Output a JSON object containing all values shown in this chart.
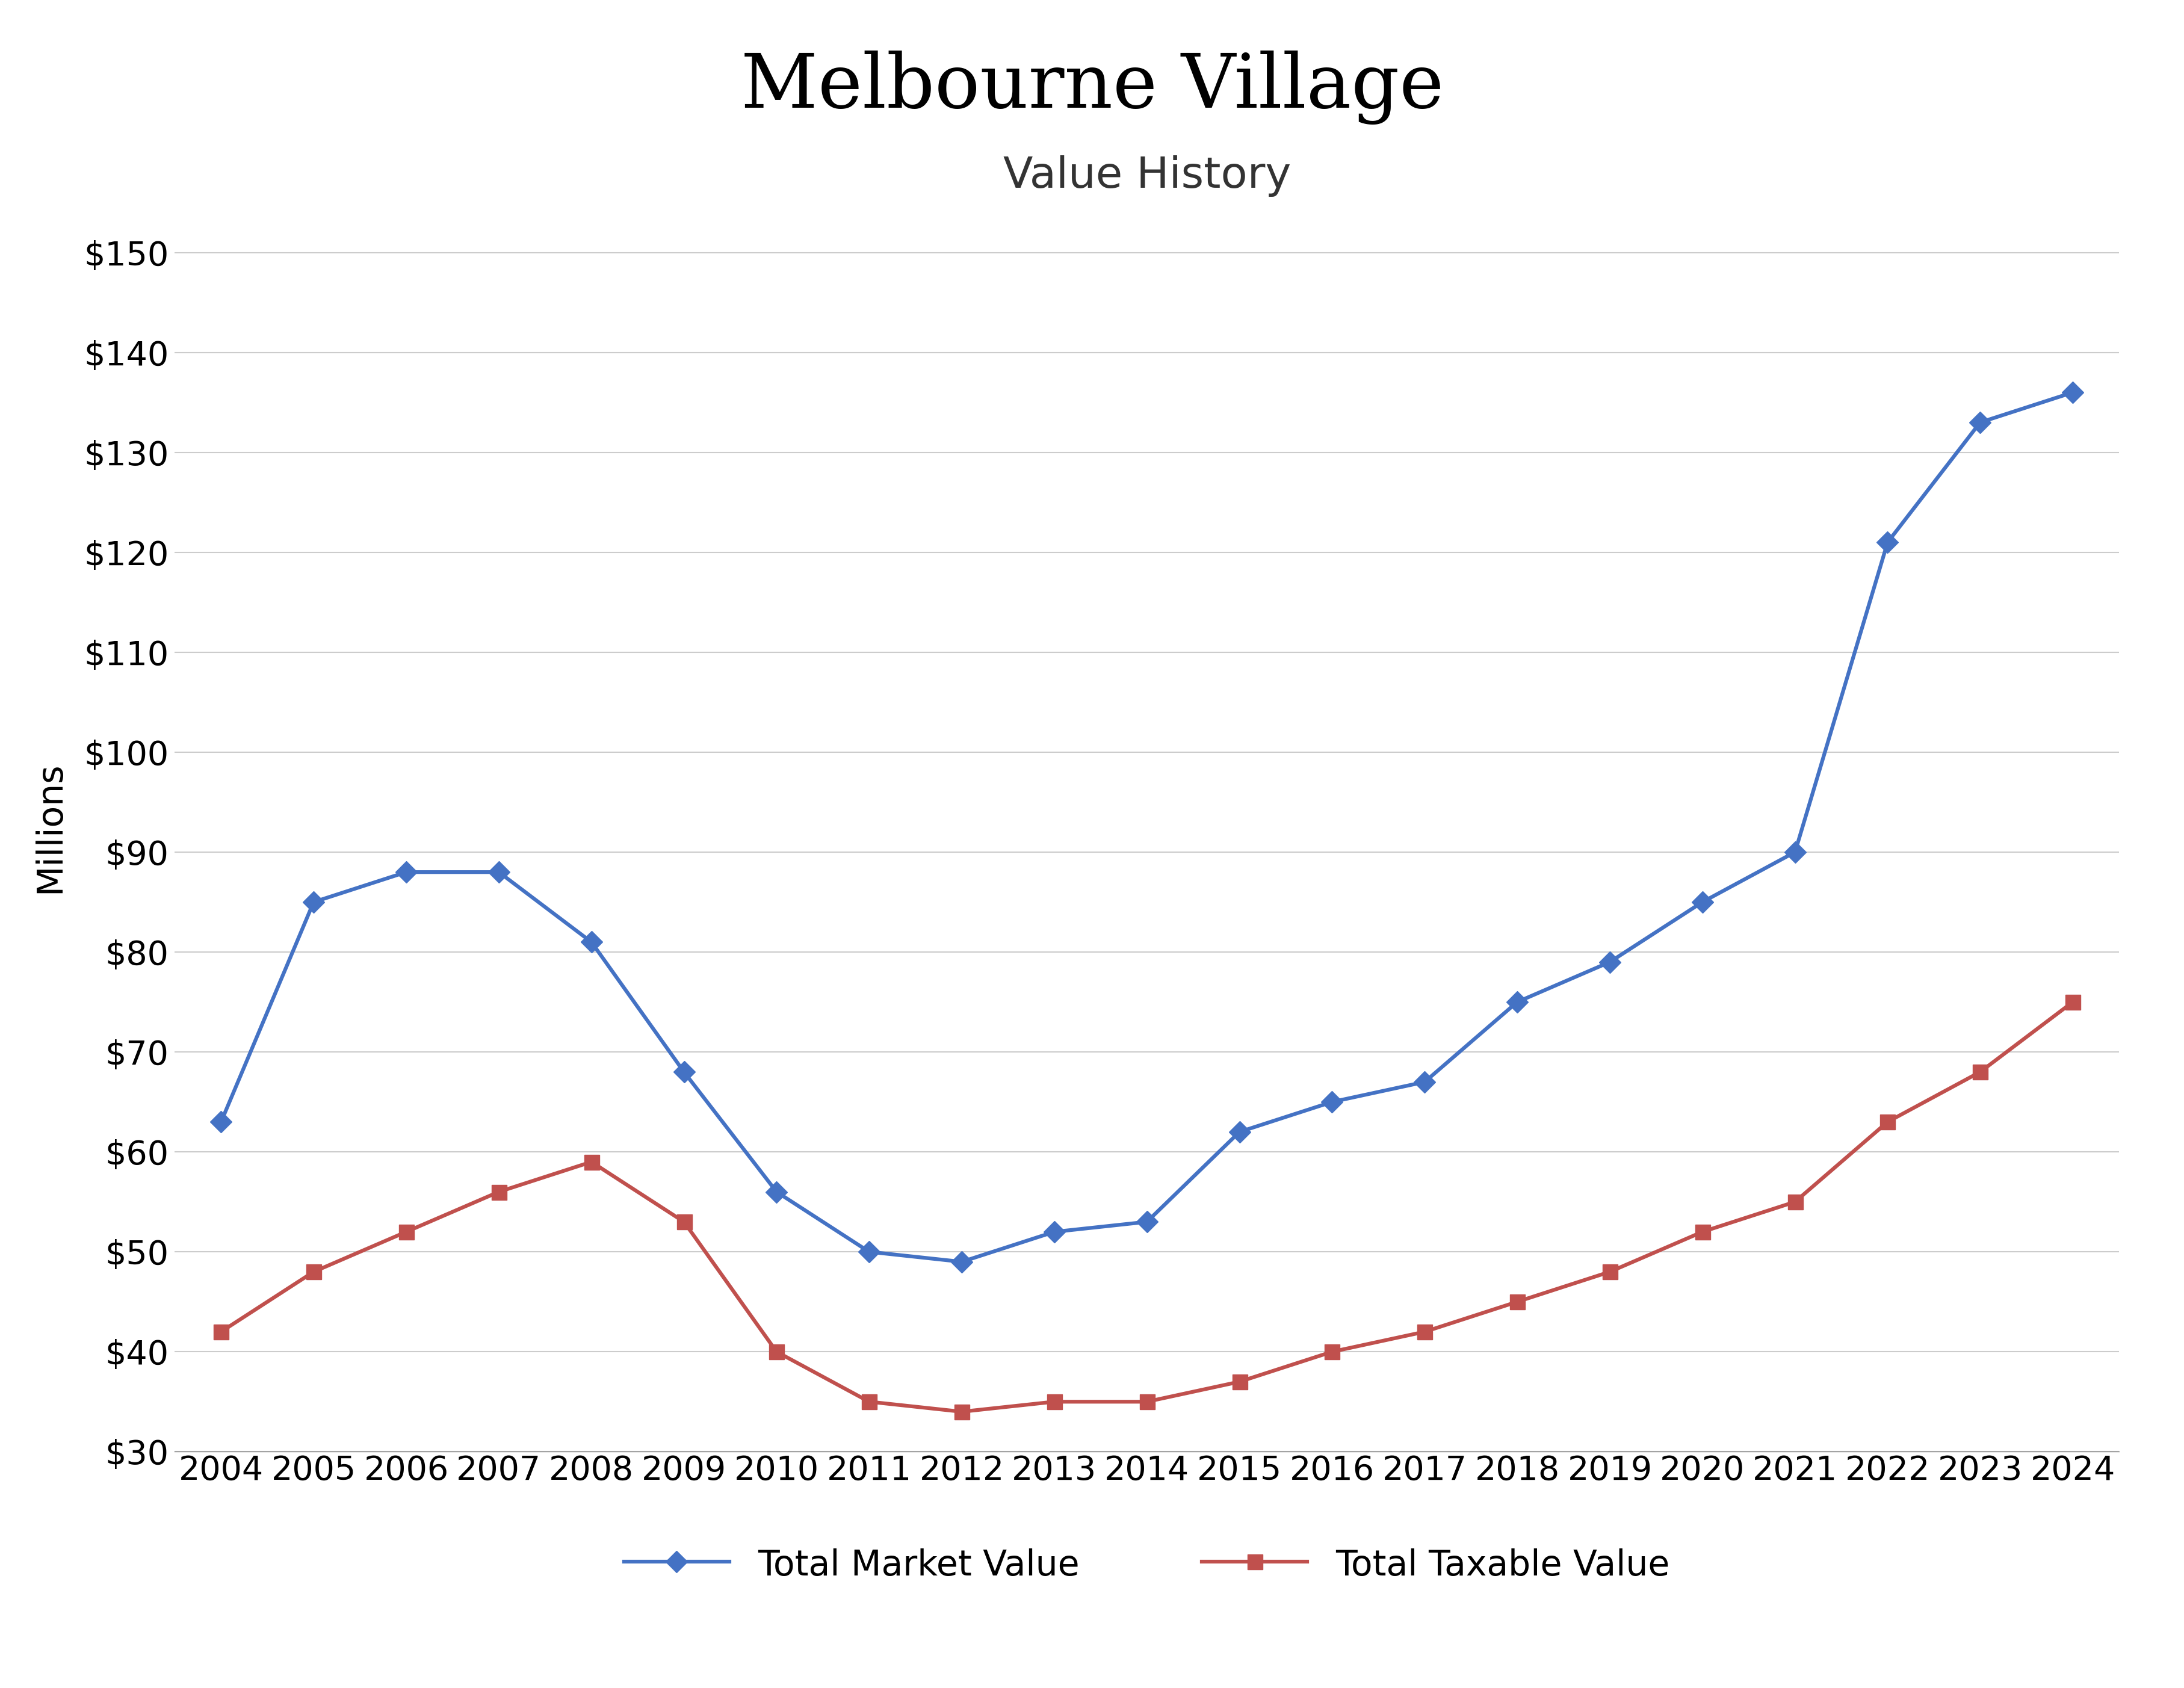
{
  "title": "Melbourne Village",
  "subtitle": "Value History",
  "years": [
    2004,
    2005,
    2006,
    2007,
    2008,
    2009,
    2010,
    2011,
    2012,
    2013,
    2014,
    2015,
    2016,
    2017,
    2018,
    2019,
    2020,
    2021,
    2022,
    2023,
    2024
  ],
  "total_market_value": [
    63,
    85,
    88,
    88,
    81,
    68,
    56,
    50,
    49,
    52,
    53,
    62,
    65,
    67,
    75,
    79,
    85,
    90,
    121,
    133,
    136
  ],
  "total_taxable_value": [
    42,
    48,
    52,
    56,
    59,
    53,
    40,
    35,
    34,
    35,
    35,
    37,
    40,
    42,
    45,
    48,
    52,
    55,
    63,
    68,
    75
  ],
  "market_color": "#4472C4",
  "taxable_color": "#C0504D",
  "background_color": "#FFFFFF",
  "ylabel": "Millions",
  "ylim_min": 30,
  "ylim_max": 155,
  "yticks": [
    30,
    40,
    50,
    60,
    70,
    80,
    90,
    100,
    110,
    120,
    130,
    140,
    150
  ],
  "legend_market": "Total Market Value",
  "legend_taxable": "Total Taxable Value",
  "title_fontsize": 90,
  "subtitle_fontsize": 52,
  "tick_fontsize": 40,
  "label_fontsize": 42,
  "legend_fontsize": 42,
  "linewidth": 4.5,
  "markersize": 18
}
